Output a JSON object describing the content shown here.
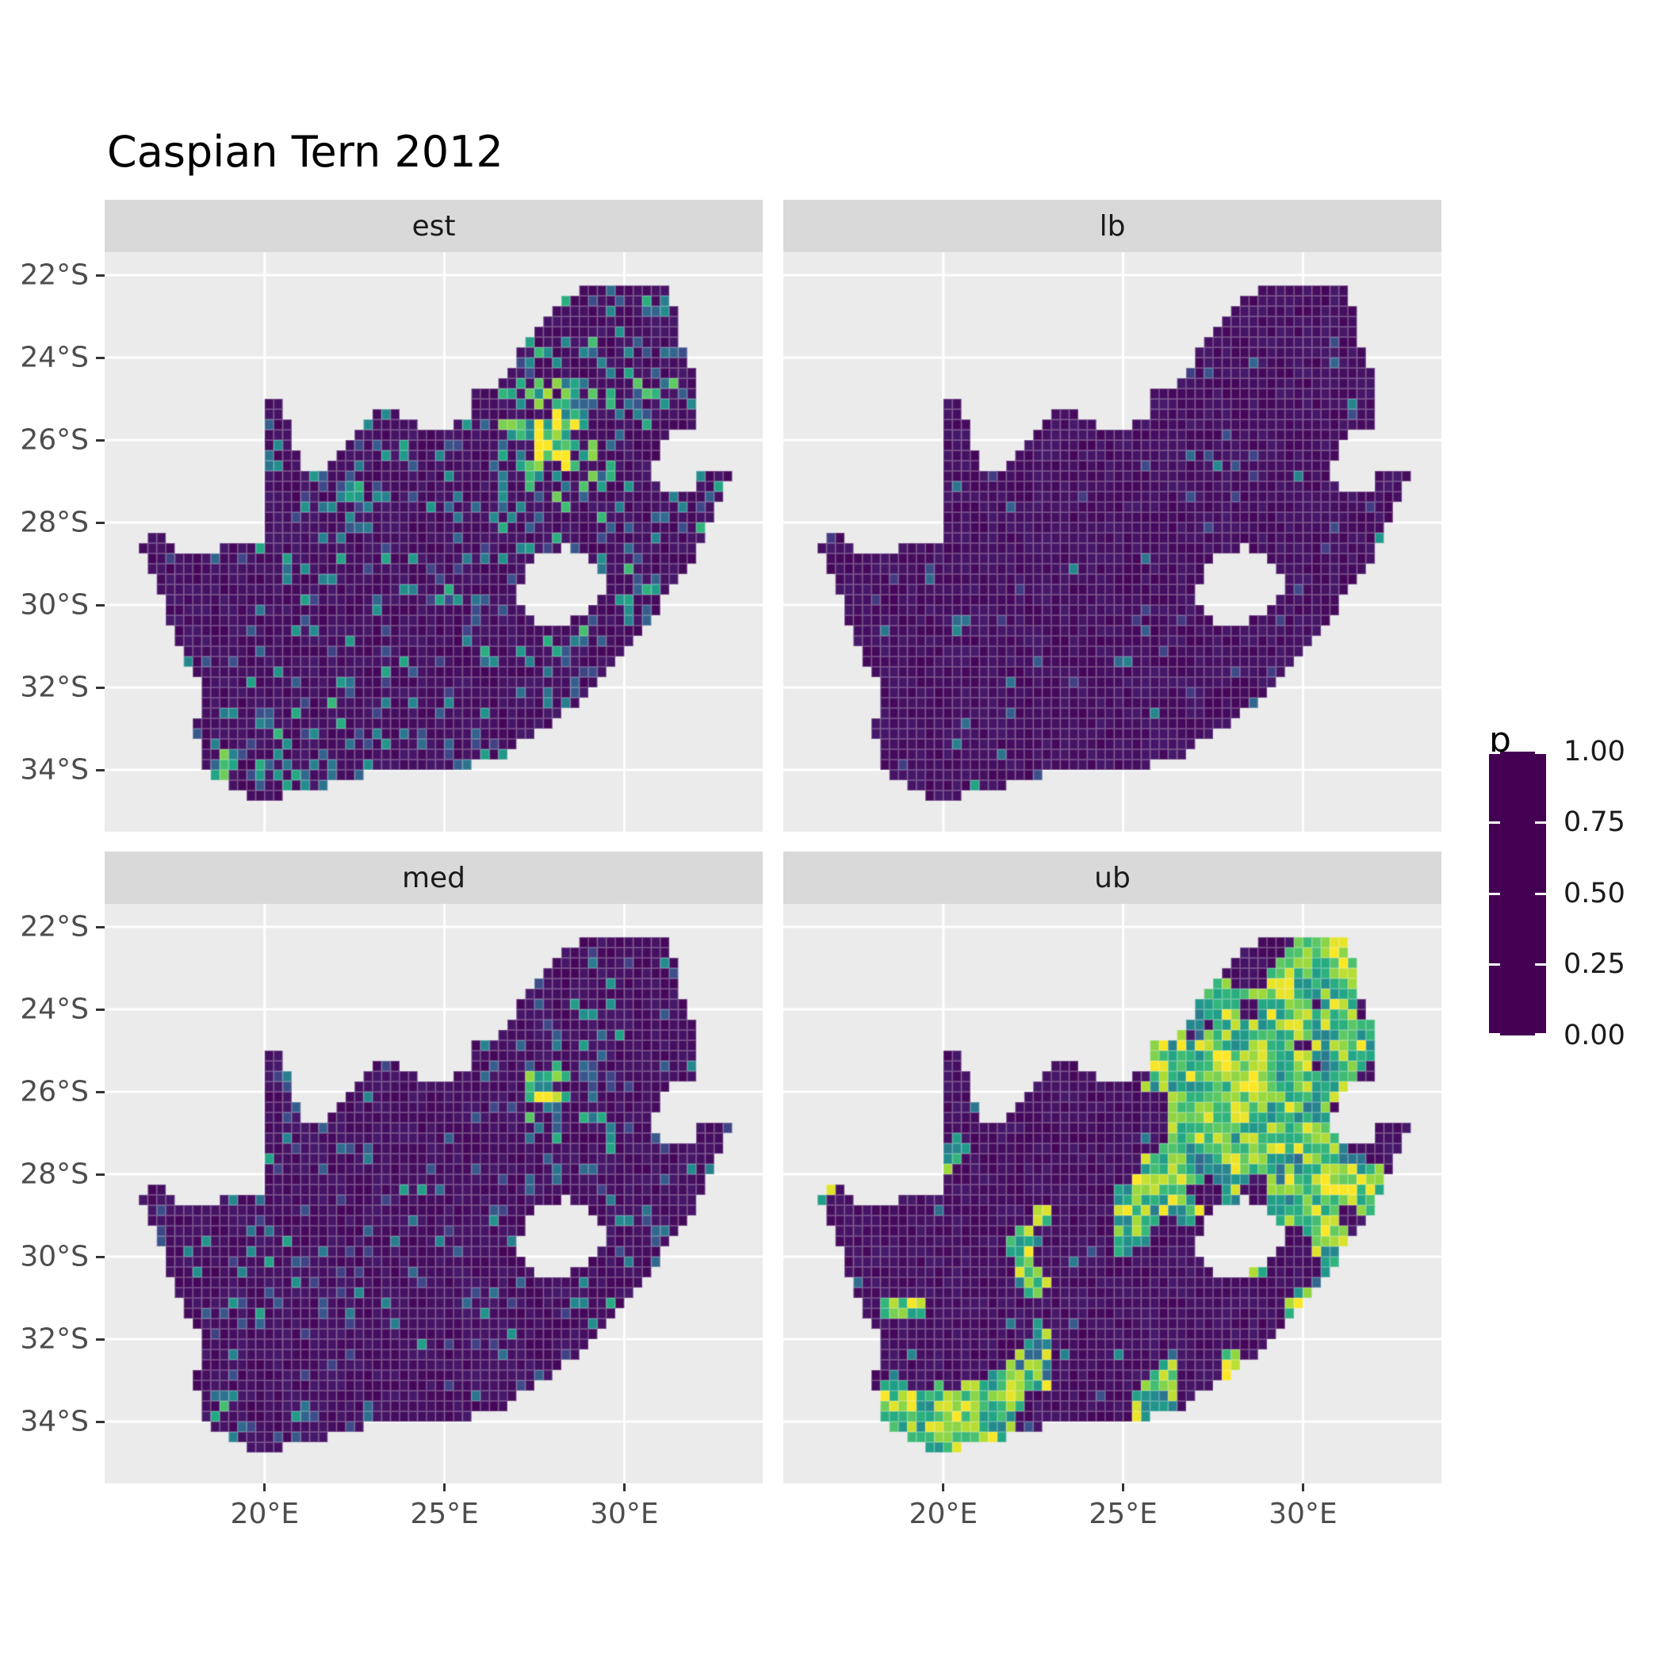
{
  "title": "Caspian Tern 2012",
  "theme": {
    "panel_bg": "#EBEBEB",
    "strip_bg": "#D9D9D9",
    "grid_color": "#FFFFFF",
    "axis_text_color": "#4D4D4D",
    "tick_mark_color": "#333333",
    "title_color": "#000000",
    "cell_border": "rgba(255,255,255,0.24)"
  },
  "chart_data": {
    "type": "heatmap",
    "subtype": "faceted-raster-map",
    "title": "Caspian Tern 2012",
    "description": "Four-facet quarter-degree raster map of South Africa (incl. Lesotho hole and Eswatini notch) showing estimated occupancy/reporting probability p for Caspian Tern in 2012: point estimate (est), lower bound (lb), median (med), upper bound (ub). Viridis colour scale 0-1. Mostly dark purple (p~0) with bright speckles; strong hotspot near Gauteng (~28E,26S) in est/med, near-zero everywhere in lb, and large yellow/green patches in ub.",
    "legend": {
      "title": "p",
      "labels": [
        "1.00",
        "0.75",
        "0.50",
        "0.25",
        "0.00"
      ],
      "values": [
        1.0,
        0.75,
        0.5,
        0.25,
        0.0
      ],
      "position": "right"
    },
    "x_axis": {
      "ticks": [
        {
          "value": 20,
          "label": "20°E"
        },
        {
          "value": 25,
          "label": "25°E"
        },
        {
          "value": 30,
          "label": "30°E"
        }
      ]
    },
    "y_axis": {
      "ticks": [
        {
          "value": -22,
          "label": "22°S"
        },
        {
          "value": -24,
          "label": "24°S"
        },
        {
          "value": -26,
          "label": "26°S"
        },
        {
          "value": -28,
          "label": "28°S"
        },
        {
          "value": -30,
          "label": "30°S"
        },
        {
          "value": -32,
          "label": "32°S"
        },
        {
          "value": -34,
          "label": "34°S"
        }
      ]
    },
    "lon_range": [
      15.55,
      33.85
    ],
    "lat_range": [
      -35.5,
      -21.44
    ],
    "cell_size_deg": 0.25,
    "viridis_stops": [
      "#440154",
      "#482878",
      "#3E4A89",
      "#31688E",
      "#26828E",
      "#21918C",
      "#22A884",
      "#35B779",
      "#5EC962",
      "#A0DA39",
      "#FDE725"
    ],
    "region_outline": [
      [
        16.45,
        -28.6
      ],
      [
        16.8,
        -28.3
      ],
      [
        17.25,
        -28.23
      ],
      [
        17.42,
        -28.7
      ],
      [
        18.2,
        -28.88
      ],
      [
        19.0,
        -28.5
      ],
      [
        19.55,
        -28.48
      ],
      [
        19.99,
        -28.42
      ],
      [
        19.99,
        -24.78
      ],
      [
        20.4,
        -25.1
      ],
      [
        20.65,
        -25.5
      ],
      [
        20.85,
        -26.1
      ],
      [
        20.9,
        -26.6
      ],
      [
        21.15,
        -26.87
      ],
      [
        21.7,
        -26.85
      ],
      [
        22.05,
        -26.4
      ],
      [
        22.6,
        -25.7
      ],
      [
        23.0,
        -25.3
      ],
      [
        23.45,
        -25.28
      ],
      [
        24.2,
        -25.65
      ],
      [
        25.0,
        -25.7
      ],
      [
        25.6,
        -25.48
      ],
      [
        25.9,
        -24.8
      ],
      [
        26.45,
        -24.6
      ],
      [
        26.85,
        -24.28
      ],
      [
        27.15,
        -23.65
      ],
      [
        27.75,
        -23.22
      ],
      [
        28.25,
        -22.7
      ],
      [
        29.05,
        -22.2
      ],
      [
        29.45,
        -22.15
      ],
      [
        29.95,
        -22.22
      ],
      [
        30.6,
        -22.3
      ],
      [
        31.3,
        -22.4
      ],
      [
        31.55,
        -23.6
      ],
      [
        31.9,
        -24.3
      ],
      [
        32.0,
        -25.1
      ],
      [
        32.02,
        -25.64
      ],
      [
        31.4,
        -25.73
      ],
      [
        30.95,
        -26.25
      ],
      [
        30.8,
        -26.8
      ],
      [
        31.1,
        -27.2
      ],
      [
        31.97,
        -27.3
      ],
      [
        32.12,
        -26.85
      ],
      [
        32.9,
        -26.85
      ],
      [
        32.58,
        -27.5
      ],
      [
        32.28,
        -28.25
      ],
      [
        31.98,
        -28.85
      ],
      [
        31.35,
        -29.5
      ],
      [
        30.75,
        -30.35
      ],
      [
        30.05,
        -31.05
      ],
      [
        29.3,
        -31.9
      ],
      [
        28.45,
        -32.55
      ],
      [
        27.55,
        -33.15
      ],
      [
        26.5,
        -33.7
      ],
      [
        25.85,
        -33.85
      ],
      [
        25.65,
        -34.03
      ],
      [
        25.0,
        -33.98
      ],
      [
        24.2,
        -34.12
      ],
      [
        23.4,
        -34.08
      ],
      [
        22.55,
        -34.15
      ],
      [
        21.75,
        -34.4
      ],
      [
        20.75,
        -34.46
      ],
      [
        20.0,
        -34.82
      ],
      [
        19.35,
        -34.58
      ],
      [
        18.88,
        -34.33
      ],
      [
        18.45,
        -34.32
      ],
      [
        18.32,
        -33.92
      ],
      [
        18.12,
        -33.15
      ],
      [
        17.88,
        -32.78
      ],
      [
        18.3,
        -32.58
      ],
      [
        18.12,
        -31.85
      ],
      [
        17.5,
        -30.75
      ],
      [
        17.08,
        -29.75
      ],
      [
        16.68,
        -28.95
      ]
    ],
    "lesotho_hole": [
      [
        27.05,
        -29.62
      ],
      [
        27.38,
        -29.02
      ],
      [
        27.78,
        -28.68
      ],
      [
        28.42,
        -28.6
      ],
      [
        29.12,
        -28.92
      ],
      [
        29.42,
        -29.32
      ],
      [
        29.45,
        -29.77
      ],
      [
        29.08,
        -30.15
      ],
      [
        28.52,
        -30.42
      ],
      [
        27.95,
        -30.66
      ],
      [
        27.42,
        -30.34
      ],
      [
        27.08,
        -29.98
      ]
    ],
    "facets": [
      {
        "id": "est",
        "label": "est",
        "seed": 11,
        "mode": "speckle",
        "base_prob": 0.03,
        "noise_prob": 0.2,
        "noise_scale": 0.55,
        "val_min": 0.17,
        "val_range": 0.48,
        "val_pow": 1.7,
        "hot_prob": 1.0,
        "hot_val": 0.95,
        "hotspots": [
          [
            27.9,
            -26.05,
            1.0,
            0.8
          ],
          [
            28.2,
            -25.3,
            2.4,
            0.16
          ],
          [
            30.0,
            -30.3,
            1.8,
            0.1
          ],
          [
            21.5,
            -34.1,
            2.2,
            0.1
          ],
          [
            30.9,
            -22.9,
            0.7,
            0.3
          ],
          [
            31.05,
            -24.7,
            0.6,
            0.28
          ],
          [
            28.6,
            -24.9,
            0.8,
            0.22
          ],
          [
            26.6,
            -27.2,
            0.5,
            0.2
          ],
          [
            22.3,
            -27.3,
            0.35,
            0.3
          ],
          [
            18.65,
            -33.85,
            0.5,
            0.42
          ],
          [
            20.3,
            -34.4,
            0.7,
            0.26
          ],
          [
            25.75,
            -33.85,
            0.45,
            0.3
          ],
          [
            27.9,
            -32.95,
            0.4,
            0.28
          ],
          [
            31.0,
            -29.75,
            0.5,
            0.38
          ],
          [
            32.0,
            -28.6,
            0.4,
            0.3
          ],
          [
            29.2,
            -26.85,
            0.55,
            0.2
          ],
          [
            28.4,
            -30.7,
            0.45,
            0.18
          ]
        ]
      },
      {
        "id": "lb",
        "label": "lb",
        "seed": 22,
        "mode": "speckle",
        "base_prob": 0.012,
        "noise_prob": 0.03,
        "noise_scale": 0.6,
        "val_min": 0.15,
        "val_range": 0.3,
        "val_pow": 2.0,
        "hot_prob": 0.5,
        "hot_val": 1.3,
        "hotspots": [
          [
            18.55,
            -34.15,
            0.25,
            0.5
          ],
          [
            19.4,
            -34.55,
            0.28,
            0.45
          ],
          [
            20.85,
            -34.4,
            0.2,
            0.3
          ],
          [
            27.0,
            -33.6,
            0.2,
            0.28
          ],
          [
            32.2,
            -28.45,
            0.25,
            0.5
          ],
          [
            31.1,
            -29.8,
            0.2,
            0.3
          ],
          [
            27.9,
            -26.2,
            0.8,
            0.09
          ],
          [
            28.4,
            -25.2,
            0.6,
            0.06
          ],
          [
            26.9,
            -24.7,
            0.5,
            0.05
          ]
        ]
      },
      {
        "id": "med",
        "label": "med",
        "seed": 33,
        "mode": "speckle",
        "base_prob": 0.02,
        "noise_prob": 0.11,
        "noise_scale": 0.55,
        "val_min": 0.17,
        "val_range": 0.42,
        "val_pow": 1.8,
        "hot_prob": 0.9,
        "hot_val": 0.85,
        "hotspots": [
          [
            27.9,
            -26.05,
            0.85,
            0.55
          ],
          [
            28.1,
            -25.4,
            2.0,
            0.1
          ],
          [
            18.65,
            -33.88,
            0.5,
            0.3
          ],
          [
            20.5,
            -34.3,
            1.6,
            0.1
          ],
          [
            25.75,
            -33.85,
            0.4,
            0.22
          ],
          [
            27.9,
            -32.95,
            0.35,
            0.22
          ],
          [
            31.05,
            -29.7,
            0.5,
            0.3
          ],
          [
            32.1,
            -28.5,
            0.35,
            0.25
          ],
          [
            29.3,
            -26.9,
            0.5,
            0.16
          ],
          [
            22.3,
            -27.3,
            0.3,
            0.16
          ],
          [
            30.0,
            -30.3,
            1.5,
            0.07
          ]
        ]
      },
      {
        "id": "ub",
        "label": "ub",
        "seed": 44,
        "mode": "cluster",
        "threshold": 0.78,
        "hot_gain": 1.5,
        "noise_scale": 0.8,
        "val_base": 0.45,
        "val_hot": 0.8,
        "val_noise": 0.6,
        "yellow_prob": 0.28,
        "regions": [
          [
            28.8,
            -25.3,
            4.2,
            3.2,
            0.35
          ],
          [
            30.6,
            -28.7,
            2.8,
            2.4,
            0.28
          ],
          [
            19.5,
            -34.0,
            2.6,
            1.4,
            0.3
          ],
          [
            23.5,
            -33.9,
            3.0,
            1.2,
            0.22
          ],
          [
            17.8,
            -30.3,
            1.2,
            1.6,
            0.15
          ],
          [
            22.4,
            -32.2,
            1.6,
            1.2,
            0.12
          ]
        ],
        "hotspots": [
          [
            27.95,
            -26.1,
            1.2,
            0.5
          ],
          [
            29.6,
            -23.6,
            0.8,
            0.3
          ],
          [
            30.9,
            -22.9,
            0.7,
            0.4
          ],
          [
            31.1,
            -24.9,
            0.6,
            0.3
          ],
          [
            30.7,
            -28.3,
            0.8,
            0.35
          ],
          [
            18.8,
            -33.95,
            0.7,
            0.4
          ],
          [
            20.4,
            -34.4,
            0.9,
            0.32
          ],
          [
            25.8,
            -33.8,
            0.6,
            0.3
          ],
          [
            27.8,
            -32.8,
            0.7,
            0.3
          ],
          [
            30.9,
            -29.9,
            0.7,
            0.32
          ],
          [
            32.0,
            -28.5,
            0.6,
            0.35
          ]
        ]
      }
    ]
  }
}
